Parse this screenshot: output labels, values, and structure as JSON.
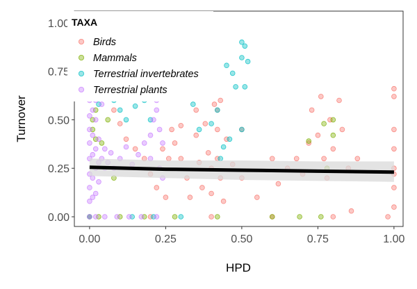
{
  "chart_data": {
    "type": "scatter",
    "xlabel": "HPD",
    "ylabel": "Turnover",
    "xlim": [
      -0.05,
      1.03
    ],
    "ylim": [
      -0.05,
      1.06
    ],
    "x_ticks": [
      "0.00",
      "0.25",
      "0.50",
      "0.75",
      "1.00"
    ],
    "y_ticks": [
      "0.00",
      "0.25",
      "0.50",
      "0.75",
      "1.00"
    ],
    "x_tick_values": [
      0,
      0.25,
      0.5,
      0.75,
      1.0
    ],
    "y_tick_values": [
      0,
      0.25,
      0.5,
      0.75,
      1.0
    ],
    "grid": false,
    "legend": {
      "title": "TAXA",
      "placement": "top-left",
      "entries": [
        "Birds",
        "Mammals",
        "Terrestrial invertebrates",
        "Terrestrial plants"
      ]
    },
    "series": [
      {
        "name": "Birds",
        "color": "#F8766D",
        "points": [
          [
            0.05,
            0.62
          ],
          [
            0.08,
            0.55
          ],
          [
            0.1,
            0.48
          ],
          [
            0.12,
            0.4
          ],
          [
            0.15,
            0.35
          ],
          [
            0.18,
            0.3
          ],
          [
            0.2,
            0.22
          ],
          [
            0.22,
            0.15
          ],
          [
            0.25,
            0.1
          ],
          [
            0.27,
            0.45
          ],
          [
            0.28,
            0.38
          ],
          [
            0.3,
            0.47
          ],
          [
            0.3,
            0.3
          ],
          [
            0.32,
            0.2
          ],
          [
            0.33,
            0.1
          ],
          [
            0.35,
            0.55
          ],
          [
            0.35,
            0.42
          ],
          [
            0.36,
            0.28
          ],
          [
            0.37,
            0.15
          ],
          [
            0.38,
            0.62
          ],
          [
            0.38,
            0.48
          ],
          [
            0.39,
            0.33
          ],
          [
            0.4,
            0.25
          ],
          [
            0.4,
            0.12
          ],
          [
            0.41,
            0.58
          ],
          [
            0.42,
            0.45
          ],
          [
            0.42,
            0.3
          ],
          [
            0.43,
            0.2
          ],
          [
            0.44,
            0.08
          ],
          [
            0.45,
            0.4
          ],
          [
            0.47,
            0.27
          ],
          [
            0.5,
            0.2
          ],
          [
            0.5,
            0.45
          ],
          [
            0.55,
            0.1
          ],
          [
            0.6,
            0.3
          ],
          [
            0.62,
            0.17
          ],
          [
            0.65,
            0.25
          ],
          [
            0.68,
            0.3
          ],
          [
            0.7,
            0.22
          ],
          [
            0.72,
            0.38
          ],
          [
            0.73,
            0.55
          ],
          [
            0.75,
            0.42
          ],
          [
            0.76,
            0.62
          ],
          [
            0.77,
            0.3
          ],
          [
            0.78,
            0.2
          ],
          [
            0.79,
            0.5
          ],
          [
            0.8,
            0.35
          ],
          [
            0.82,
            0.6
          ],
          [
            0.83,
            0.45
          ],
          [
            0.85,
            0.25
          ],
          [
            0.86,
            0.03
          ],
          [
            0.88,
            0.3
          ],
          [
            0.98,
            0.0
          ],
          [
            1.0,
            0.25
          ],
          [
            1.0,
            0.35
          ],
          [
            1.0,
            0.45
          ],
          [
            1.0,
            0.62
          ],
          [
            1.0,
            0.66
          ],
          [
            1.0,
            0.22
          ],
          [
            1.0,
            0.15
          ],
          [
            1.0,
            0.05
          ],
          [
            0.0,
            0.0
          ],
          [
            0.2,
            0.0
          ],
          [
            0.4,
            0.0
          ],
          [
            0.6,
            0.0
          ],
          [
            0.8,
            0.0
          ],
          [
            0.42,
            0.55
          ],
          [
            0.43,
            0.6
          ],
          [
            0.24,
            0.35
          ],
          [
            0.26,
            0.3
          ]
        ]
      },
      {
        "name": "Mammals",
        "color": "#7CAE00",
        "points": [
          [
            0.01,
            0.45
          ],
          [
            0.02,
            0.4
          ],
          [
            0.01,
            0.5
          ],
          [
            0.0,
            0.0
          ],
          [
            0.03,
            0.0
          ],
          [
            0.1,
            0.0
          ],
          [
            0.18,
            0.0
          ],
          [
            0.28,
            0.0
          ],
          [
            0.42,
            0.0
          ],
          [
            0.6,
            0.0
          ],
          [
            0.69,
            0.0
          ],
          [
            0.76,
            0.0
          ],
          [
            0.78,
            0.25
          ],
          [
            0.8,
            0.5
          ],
          [
            0.72,
            0.39
          ],
          [
            0.77,
            0.48
          ],
          [
            0.8,
            0.42
          ],
          [
            0.02,
            0.55
          ],
          [
            0.04,
            0.38
          ],
          [
            0.06,
            0.5
          ],
          [
            0.08,
            0.2
          ]
        ]
      },
      {
        "name": "Terrestrial invertebrates",
        "color": "#00BFC4",
        "points": [
          [
            0.5,
            0.9
          ],
          [
            0.51,
            0.88
          ],
          [
            0.45,
            0.78
          ],
          [
            0.47,
            0.74
          ],
          [
            0.5,
            0.82
          ],
          [
            0.52,
            0.8
          ],
          [
            0.48,
            0.67
          ],
          [
            0.51,
            0.67
          ],
          [
            0.42,
            0.55
          ],
          [
            0.4,
            0.48
          ],
          [
            0.36,
            0.45
          ],
          [
            0.34,
            0.58
          ],
          [
            0.5,
            0.45
          ],
          [
            0.1,
            0.55
          ],
          [
            0.15,
            0.57
          ],
          [
            0.2,
            0.5
          ],
          [
            0.18,
            0.6
          ],
          [
            0.12,
            0.5
          ],
          [
            0.08,
            0.6
          ],
          [
            0.05,
            0.62
          ],
          [
            0.03,
            0.58
          ],
          [
            0.0,
            0.0
          ],
          [
            0.14,
            0.0
          ],
          [
            0.21,
            0.0
          ],
          [
            0.3,
            0.0
          ],
          [
            0.44,
            0.36
          ],
          [
            0.46,
            0.4
          ],
          [
            0.43,
            0.3
          ]
        ]
      },
      {
        "name": "Terrestrial plants",
        "color": "#C77CFF",
        "points": [
          [
            0.0,
            0.08
          ],
          [
            0.0,
            0.15
          ],
          [
            0.0,
            0.22
          ],
          [
            0.0,
            0.3
          ],
          [
            0.0,
            0.38
          ],
          [
            0.0,
            0.45
          ],
          [
            0.0,
            0.52
          ],
          [
            0.0,
            0.6
          ],
          [
            0.01,
            0.1
          ],
          [
            0.01,
            0.2
          ],
          [
            0.01,
            0.32
          ],
          [
            0.01,
            0.42
          ],
          [
            0.01,
            0.55
          ],
          [
            0.02,
            0.12
          ],
          [
            0.02,
            0.25
          ],
          [
            0.02,
            0.35
          ],
          [
            0.02,
            0.5
          ],
          [
            0.03,
            0.18
          ],
          [
            0.03,
            0.28
          ],
          [
            0.03,
            0.4
          ],
          [
            0.04,
            0.3
          ],
          [
            0.05,
            0.25
          ],
          [
            0.05,
            0.35
          ],
          [
            0.06,
            0.28
          ],
          [
            0.07,
            0.33
          ],
          [
            0.08,
            0.25
          ],
          [
            0.1,
            0.3
          ],
          [
            0.12,
            0.36
          ],
          [
            0.14,
            0.27
          ],
          [
            0.16,
            0.32
          ],
          [
            0.18,
            0.38
          ],
          [
            0.2,
            0.42
          ],
          [
            0.21,
            0.5
          ],
          [
            0.22,
            0.55
          ],
          [
            0.23,
            0.45
          ],
          [
            0.24,
            0.38
          ],
          [
            0.22,
            0.6
          ],
          [
            0.2,
            0.3
          ],
          [
            0.23,
            0.25
          ],
          [
            0.24,
            0.2
          ],
          [
            0.0,
            0.0
          ],
          [
            0.02,
            0.0
          ],
          [
            0.05,
            0.0
          ],
          [
            0.09,
            0.0
          ],
          [
            0.13,
            0.0
          ],
          [
            0.17,
            0.0
          ],
          [
            0.22,
            0.0
          ],
          [
            0.01,
            0.62
          ],
          [
            0.02,
            0.6
          ],
          [
            0.04,
            0.58
          ]
        ]
      }
    ],
    "trend_line": {
      "color": "#000000",
      "x": [
        0.0,
        0.25,
        0.5,
        0.75,
        1.0
      ],
      "y": [
        0.255,
        0.245,
        0.24,
        0.235,
        0.23
      ],
      "ci_lower": [
        0.21,
        0.2,
        0.19,
        0.185,
        0.18
      ],
      "ci_upper": [
        0.3,
        0.29,
        0.29,
        0.285,
        0.285
      ],
      "ci_color": "#D9D9D9"
    }
  }
}
